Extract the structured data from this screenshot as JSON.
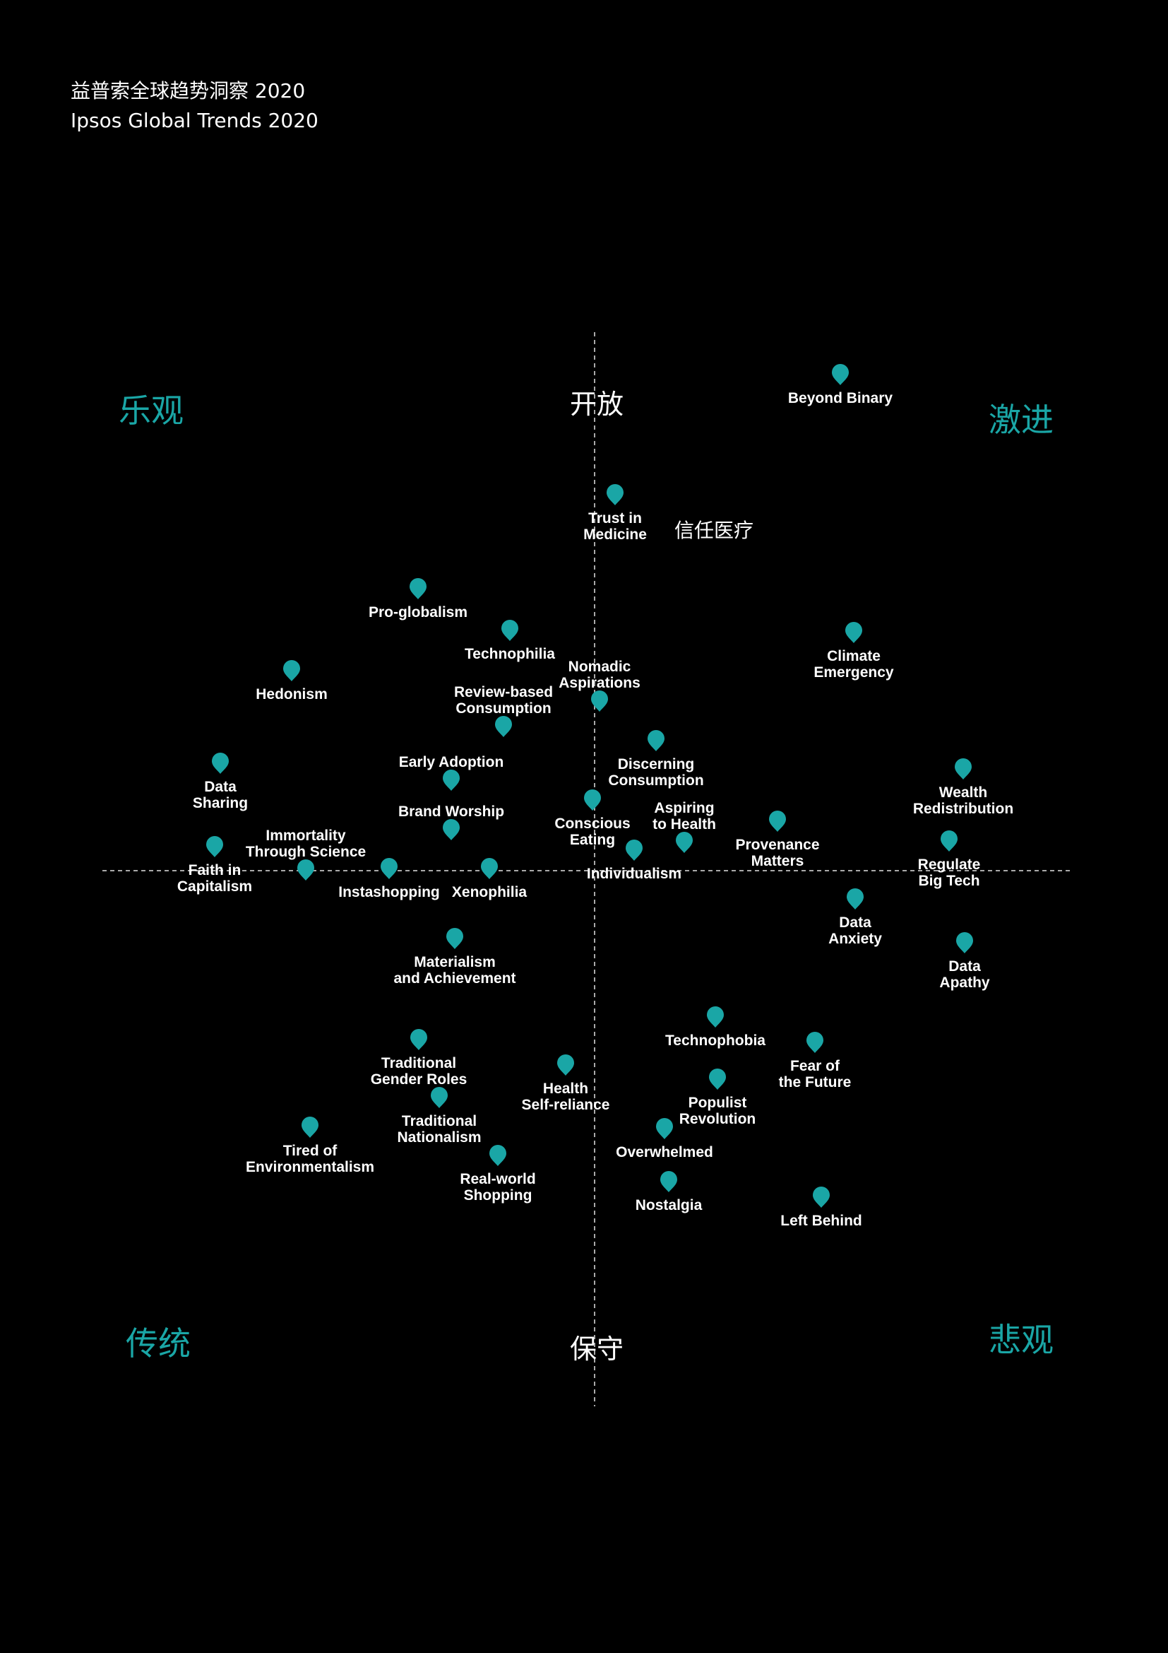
{
  "header": {
    "title_cn": "益普索全球趋势洞察 2020",
    "title_en": "Ipsos Global Trends 2020"
  },
  "quadrants": {
    "top_left": "乐观",
    "top_right": "激进",
    "bottom_left": "传统",
    "bottom_right": "悲观"
  },
  "axes": {
    "top": "开放",
    "bottom": "保守"
  },
  "annotation": "信任医疗",
  "colors": {
    "accent": "#1aa6a6",
    "background": "#000000",
    "text": "#ffffff"
  },
  "trends": [
    {
      "name": "Beyond Binary",
      "lines": [
        "Beyond Binary"
      ]
    },
    {
      "name": "Trust in Medicine",
      "lines": [
        "Trust in",
        "Medicine"
      ]
    },
    {
      "name": "Pro-globalism",
      "lines": [
        "Pro-globalism"
      ]
    },
    {
      "name": "Technophilia",
      "lines": [
        "Technophilia"
      ]
    },
    {
      "name": "Climate Emergency",
      "lines": [
        "Climate",
        "Emergency"
      ]
    },
    {
      "name": "Hedonism",
      "lines": [
        "Hedonism"
      ]
    },
    {
      "name": "Nomadic Aspirations",
      "lines": [
        "Nomadic",
        "Aspirations"
      ]
    },
    {
      "name": "Review-based Consumption",
      "lines": [
        "Review-based",
        "Consumption"
      ]
    },
    {
      "name": "Discerning Consumption",
      "lines": [
        "Discerning",
        "Consumption"
      ]
    },
    {
      "name": "Early Adoption",
      "lines": [
        "Early Adoption"
      ]
    },
    {
      "name": "Data Sharing",
      "lines": [
        "Data",
        "Sharing"
      ]
    },
    {
      "name": "Wealth Redistribution",
      "lines": [
        "Wealth",
        "Redistribution"
      ]
    },
    {
      "name": "Brand Worship",
      "lines": [
        "Brand Worship"
      ]
    },
    {
      "name": "Conscious Eating",
      "lines": [
        "Conscious",
        "Eating"
      ]
    },
    {
      "name": "Aspiring to Health",
      "lines": [
        "Aspiring",
        "to Health"
      ]
    },
    {
      "name": "Provenance Matters",
      "lines": [
        "Provenance",
        "Matters"
      ]
    },
    {
      "name": "Immortality Through Science",
      "lines": [
        "Immortality",
        "Through Science"
      ]
    },
    {
      "name": "Faith in Capitalism",
      "lines": [
        "Faith in",
        "Capitalism"
      ]
    },
    {
      "name": "Regulate Big Tech",
      "lines": [
        "Regulate",
        "Big Tech"
      ]
    },
    {
      "name": "Instashopping",
      "lines": [
        "Instashopping"
      ]
    },
    {
      "name": "Xenophilia",
      "lines": [
        "Xenophilia"
      ]
    },
    {
      "name": "Individualism",
      "lines": [
        "Individualism"
      ]
    },
    {
      "name": "Data Anxiety",
      "lines": [
        "Data",
        "Anxiety"
      ]
    },
    {
      "name": "Materialism and Achievement",
      "lines": [
        "Materialism",
        "and Achievement"
      ]
    },
    {
      "name": "Data Apathy",
      "lines": [
        "Data",
        "Apathy"
      ]
    },
    {
      "name": "Technophobia",
      "lines": [
        "Technophobia"
      ]
    },
    {
      "name": "Traditional Gender Roles",
      "lines": [
        "Traditional",
        "Gender Roles"
      ]
    },
    {
      "name": "Fear of the Future",
      "lines": [
        "Fear of",
        "the Future"
      ]
    },
    {
      "name": "Health Self-reliance",
      "lines": [
        "Health",
        "Self-reliance"
      ]
    },
    {
      "name": "Populist Revolution",
      "lines": [
        "Populist",
        "Revolution"
      ]
    },
    {
      "name": "Traditional Nationalism",
      "lines": [
        "Traditional",
        "Nationalism"
      ]
    },
    {
      "name": "Tired of Environmentalism",
      "lines": [
        "Tired of",
        "Environmentalism"
      ]
    },
    {
      "name": "Overwhelmed",
      "lines": [
        "Overwhelmed"
      ]
    },
    {
      "name": "Real-world Shopping",
      "lines": [
        "Real-world",
        "Shopping"
      ]
    },
    {
      "name": "Nostalgia",
      "lines": [
        "Nostalgia"
      ]
    },
    {
      "name": "Left Behind",
      "lines": [
        "Left Behind"
      ]
    }
  ]
}
